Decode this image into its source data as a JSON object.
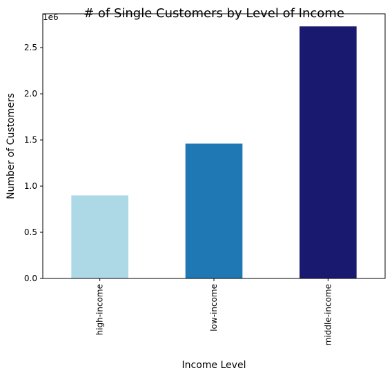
{
  "chart_data": {
    "type": "bar",
    "title": "# of Single Customers by Level of Income",
    "xlabel": "Income Level",
    "ylabel": "Number of Customers",
    "y_offset_label": "1e6",
    "categories": [
      "high-income",
      "low-income",
      "middle-income"
    ],
    "values": [
      900000,
      1460000,
      2730000
    ],
    "colors": [
      "#add8e6",
      "#1f77b4",
      "#191970"
    ],
    "ylim": [
      0,
      2866500
    ],
    "yticks": [
      0,
      500000,
      1000000,
      1500000,
      2000000,
      2500000
    ],
    "ytick_labels": [
      "0.0",
      "0.5",
      "1.0",
      "1.5",
      "2.0",
      "2.5"
    ],
    "grid": false,
    "legend": false
  }
}
